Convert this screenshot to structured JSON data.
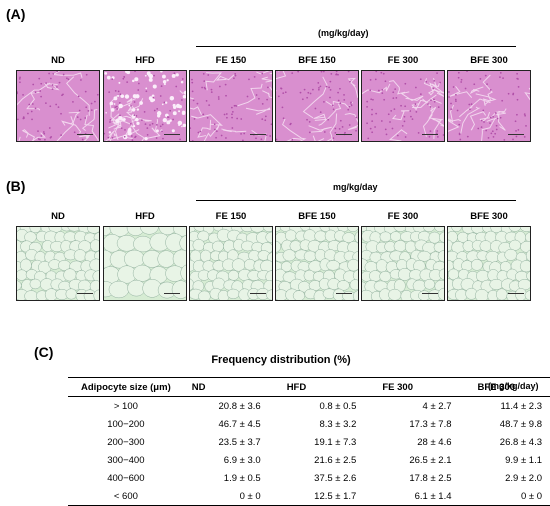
{
  "panel_a": {
    "label": "(A)",
    "unit": "(mg/kg/day)",
    "columns": [
      "ND",
      "HFD",
      "FE 150",
      "BFE 150",
      "FE 300",
      "BFE 300"
    ]
  },
  "panel_b": {
    "label": "(B)",
    "unit": "mg/kg/day",
    "columns": [
      "ND",
      "HFD",
      "FE 150",
      "BFE 150",
      "FE 300",
      "BFE 300"
    ]
  },
  "panel_c": {
    "label": "(C)",
    "title": "Frequency distribution (%)",
    "unit": "(mg/kg/day)",
    "headers": [
      "Adipocyte size (μm)",
      "ND",
      "HFD",
      "FE 300",
      "BFE 300"
    ],
    "rows": [
      [
        "> 100",
        "20.8 ± 3.6",
        "0.8 ± 0.5",
        "4 ± 2.7",
        "11.4 ± 2.3"
      ],
      [
        "100−200",
        "46.7 ± 4.5",
        "8.3 ± 3.2",
        "17.3 ± 7.8",
        "48.7 ± 9.8"
      ],
      [
        "200−300",
        "23.5 ± 3.7",
        "19.1 ± 7.3",
        "28 ± 4.6",
        "26.8 ± 4.3"
      ],
      [
        "300−400",
        "6.9 ± 3.0",
        "21.6 ± 2.5",
        "26.5 ± 2.1",
        "9.9 ± 1.1"
      ],
      [
        "400−600",
        "1.9 ± 0.5",
        "37.5 ± 2.6",
        "17.8 ± 2.5",
        "2.9 ± 2.0"
      ],
      [
        "< 600",
        "0 ± 0",
        "12.5 ± 1.7",
        "6.1 ± 1.4",
        "0 ± 0"
      ]
    ]
  },
  "colors": {
    "liver_base": "#d98fcf",
    "liver_dark": "#b04fa8",
    "adipose_base": "#d6ecd3",
    "adipose_line": "#8fae9c"
  }
}
